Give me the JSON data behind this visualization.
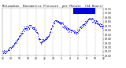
{
  "title": "Milwaukee  Barometric Pressure  per Minute  (24 Hours)",
  "bg_color": "#ffffff",
  "plot_bg_color": "#ffffff",
  "dot_color": "#0000ff",
  "grid_color": "#bbbbbb",
  "text_color": "#000000",
  "legend_color": "#0000dd",
  "ylim": [
    29.0,
    30.12
  ],
  "xlim": [
    0,
    1440
  ],
  "num_points": 1440,
  "seed": 7
}
